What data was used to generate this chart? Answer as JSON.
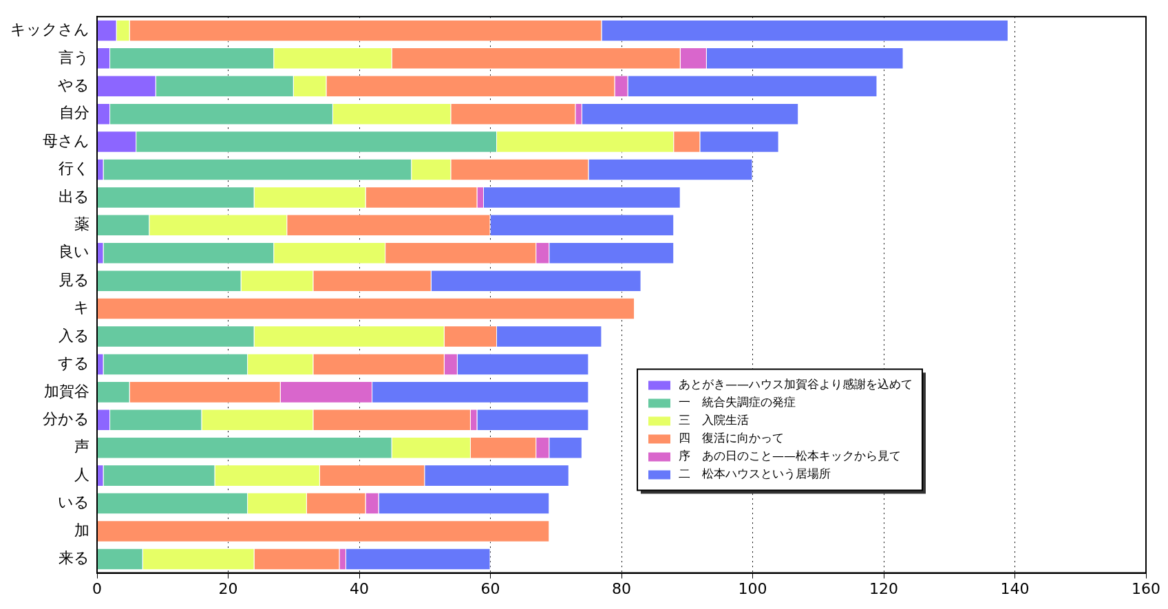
{
  "chart_data": {
    "type": "bar",
    "orientation": "horizontal",
    "stacked": true,
    "categories": [
      "キックさん",
      "言う",
      "やる",
      "自分",
      "母さん",
      "行く",
      "出る",
      "薬",
      "良い",
      "見る",
      "キ",
      "入る",
      "する",
      "加賀谷",
      "分かる",
      "声",
      "人",
      "いる",
      "加",
      "来る"
    ],
    "series": [
      {
        "name": "あとがき——ハウス加賀谷より感謝を込めて",
        "color": "#8c66ff",
        "values": [
          3,
          2,
          9,
          2,
          6,
          1,
          0,
          0,
          1,
          0,
          0,
          0,
          1,
          0,
          2,
          0,
          1,
          0,
          0,
          0
        ]
      },
      {
        "name": "一　統合失調症の発症",
        "color": "#66c9a0",
        "values": [
          0,
          25,
          21,
          34,
          55,
          47,
          24,
          8,
          26,
          22,
          0,
          24,
          22,
          5,
          14,
          45,
          17,
          23,
          0,
          7
        ]
      },
      {
        "name": "三　入院生活",
        "color": "#e6ff66",
        "values": [
          2,
          18,
          5,
          18,
          27,
          6,
          17,
          21,
          17,
          11,
          0,
          29,
          10,
          0,
          17,
          12,
          16,
          9,
          0,
          17
        ]
      },
      {
        "name": "四　復活に向かって",
        "color": "#ff9066",
        "values": [
          72,
          44,
          44,
          19,
          4,
          21,
          17,
          31,
          23,
          18,
          82,
          8,
          20,
          23,
          24,
          10,
          16,
          9,
          69,
          13
        ]
      },
      {
        "name": "序　あの日のこと——松本キックから見て",
        "color": "#d966cc",
        "values": [
          0,
          4,
          2,
          1,
          0,
          0,
          1,
          0,
          2,
          0,
          0,
          0,
          2,
          14,
          1,
          2,
          0,
          2,
          0,
          1
        ]
      },
      {
        "name": "二　松本ハウスという居場所",
        "color": "#6678fa",
        "values": [
          62,
          30,
          38,
          33,
          12,
          25,
          30,
          28,
          19,
          32,
          0,
          16,
          20,
          33,
          17,
          5,
          22,
          26,
          0,
          22
        ]
      }
    ],
    "xlim": [
      0,
      160
    ],
    "xticks": [
      0,
      20,
      40,
      60,
      80,
      100,
      120,
      140,
      160
    ],
    "grid": "x",
    "legend": "bottom right"
  }
}
